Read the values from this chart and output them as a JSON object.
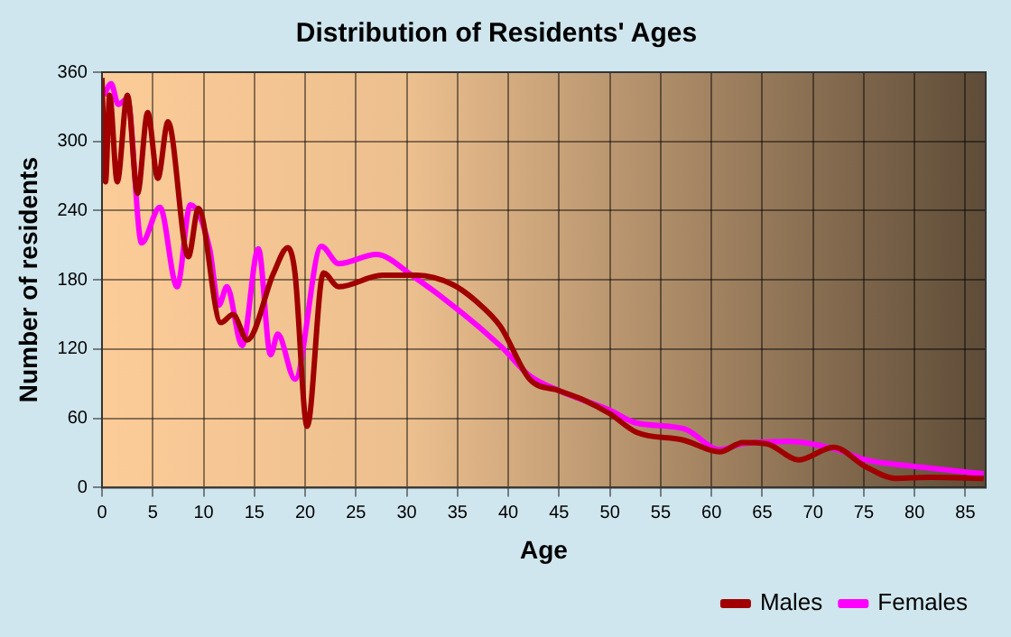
{
  "chart_data": {
    "type": "line",
    "title": "Distribution of Residents' Ages",
    "xlabel": "Age",
    "ylabel": "Number of residents",
    "xlim": [
      0,
      87
    ],
    "xticks": [
      0,
      5,
      10,
      15,
      20,
      25,
      30,
      35,
      40,
      45,
      50,
      55,
      60,
      65,
      70,
      75,
      80,
      85
    ],
    "ylim": [
      0,
      360
    ],
    "yticks": [
      0,
      60,
      120,
      180,
      240,
      300,
      360
    ],
    "grid": true,
    "legend": "bottom right",
    "marker": "none",
    "line_style": "solid",
    "series": [
      {
        "name": "Males",
        "color": "#a00000",
        "x": [
          0,
          0.35,
          0.75,
          1.5,
          2.5,
          3.5,
          4.5,
          5.5,
          6.5,
          8.5,
          9.5,
          11.7,
          12.9,
          14.3,
          16.9,
          18.3,
          19,
          20.2,
          21.8,
          23.3,
          27.6,
          31,
          34.5,
          36.9,
          39.2,
          42.1,
          45,
          47.4,
          50,
          52.6,
          57.3,
          60.8,
          63.1,
          65.4,
          68.6,
          72,
          75.2,
          78.1,
          81.6,
          86.8
        ],
        "values": [
          355,
          265,
          340,
          265,
          340,
          255,
          325,
          268,
          317,
          200,
          242,
          143,
          150,
          128,
          186,
          208,
          186,
          53,
          186,
          174,
          184,
          184,
          176,
          161,
          140,
          94,
          84,
          76,
          64,
          48,
          41,
          31,
          39,
          38,
          24,
          35,
          18,
          8,
          9,
          8
        ]
      },
      {
        "name": "Females",
        "color": "#ff00ff",
        "x": [
          0.2,
          0.9,
          1.6,
          2.5,
          3.9,
          5.7,
          7.4,
          8.7,
          10.6,
          11.5,
          12.3,
          13.8,
          15.4,
          16.6,
          17.3,
          19,
          21.6,
          23.3,
          27,
          30.5,
          39.2,
          42.1,
          45,
          50,
          52.6,
          57.3,
          60.8,
          63.1,
          67.7,
          72.3,
          75.2,
          79.3,
          86.8
        ],
        "values": [
          340,
          350,
          332,
          337,
          212,
          243,
          174,
          245,
          207,
          158,
          174,
          123,
          207,
          115,
          133,
          94,
          209,
          194,
          202,
          184,
          123,
          97,
          84,
          67,
          56,
          51,
          33,
          38,
          40,
          33,
          24,
          19,
          12
        ]
      }
    ]
  }
}
